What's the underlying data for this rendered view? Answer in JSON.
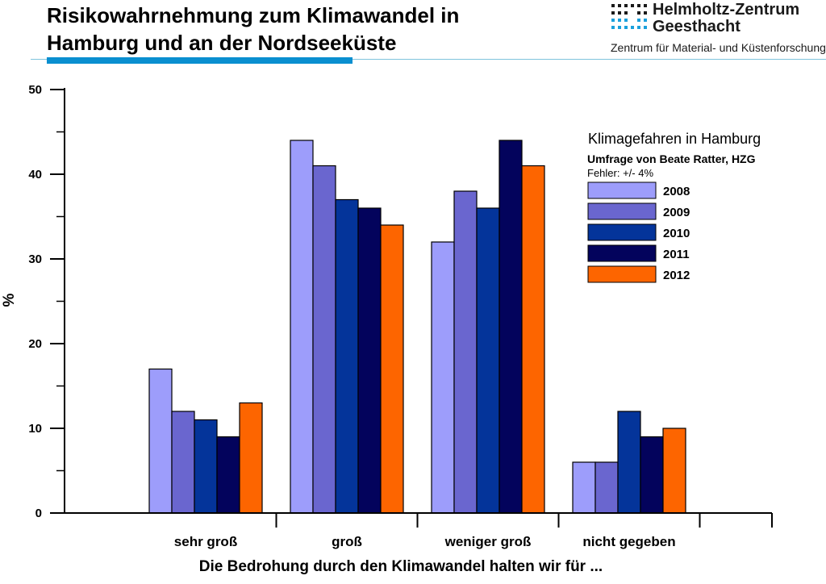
{
  "slide": {
    "title_line1": "Risikowahrnehmung zum Klimawandel in",
    "title_line2": "Hamburg und an der Nordseeküste"
  },
  "logo": {
    "name_line1": "Helmholtz-Zentrum",
    "name_line2": "Geesthacht",
    "subtitle": "Zentrum für Material- und Küstenforschung"
  },
  "chart_data": {
    "type": "bar",
    "categories": [
      "sehr groß",
      "groß",
      "weniger groß",
      "nicht gegeben"
    ],
    "series": [
      {
        "name": "2008",
        "color": "#9d9dfb",
        "values": [
          17,
          44,
          32,
          6
        ]
      },
      {
        "name": "2009",
        "color": "#6a66cf",
        "values": [
          12,
          41,
          38,
          6
        ]
      },
      {
        "name": "2010",
        "color": "#04349a",
        "values": [
          11,
          37,
          36,
          12
        ]
      },
      {
        "name": "2011",
        "color": "#03035c",
        "values": [
          9,
          36,
          44,
          9
        ]
      },
      {
        "name": "2012",
        "color": "#fd6500",
        "values": [
          13,
          34,
          41,
          10
        ]
      }
    ],
    "ylabel": "%",
    "xlabel": "Die Bedrohung durch den Klimawandel halten wir für ...",
    "ylim": [
      0,
      50
    ],
    "yticks": [
      0,
      10,
      20,
      30,
      40,
      50
    ],
    "grid": false,
    "legend": {
      "title": "Klimagefahren in Hamburg",
      "subtitle": "Umfrage von Beate Ratter, HZG",
      "note": "Fehler: +/- 4%",
      "placement": "top-right"
    }
  }
}
